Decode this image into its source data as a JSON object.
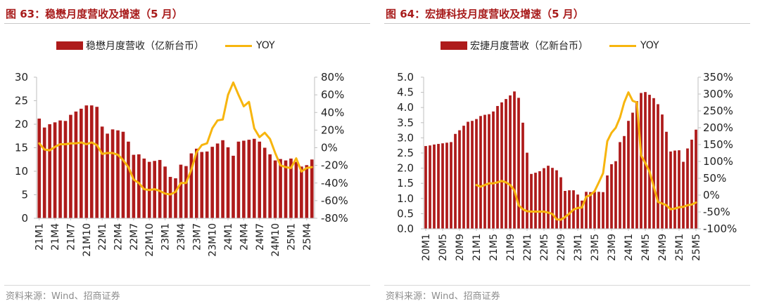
{
  "colors": {
    "bar": "#ae1b1b",
    "line": "#f7b50e",
    "title": "#a81c1c",
    "source": "#8c8c8c",
    "axis": "#bfbfbf"
  },
  "panels": [
    {
      "title": "图 63：稳懋月度营收及增速（5 月）",
      "source": "资料来源：Wind、招商证券",
      "legend": {
        "bar": "稳懋月度营收（亿新台币）",
        "line": "YOY"
      }
    },
    {
      "title": "图 64：宏捷科技月度营收及增速（5 月）",
      "source": "资料来源：Wind、招商证券",
      "legend": {
        "bar": "宏捷月度营收（亿新台币）",
        "line": "YOY"
      }
    }
  ],
  "chart_data": [
    {
      "type": "bar",
      "title": "图 63：稳懋月度营收及增速（5 月）",
      "x": [
        "21M1",
        "21M2",
        "21M3",
        "21M4",
        "21M5",
        "21M6",
        "21M7",
        "21M8",
        "21M9",
        "21M10",
        "21M11",
        "21M12",
        "22M1",
        "22M2",
        "22M3",
        "22M4",
        "22M5",
        "22M6",
        "22M7",
        "22M8",
        "22M9",
        "22M10",
        "22M11",
        "22M12",
        "23M1",
        "23M2",
        "23M3",
        "23M4",
        "23M5",
        "23M6",
        "23M7",
        "23M8",
        "23M9",
        "23M10",
        "23M11",
        "23M12",
        "24M1",
        "24M2",
        "24M3",
        "24M4",
        "24M5",
        "24M6",
        "24M7",
        "24M8",
        "24M9",
        "24M10",
        "24M11",
        "24M12",
        "25M1",
        "25M2",
        "25M3",
        "25M4",
        "25M5"
      ],
      "x_tick_labels": [
        "21M1",
        "21M4",
        "21M7",
        "21M10",
        "22M1",
        "22M4",
        "22M7",
        "22M10",
        "23M1",
        "23M4",
        "23M7",
        "23M10",
        "24M1",
        "24M4",
        "24M7",
        "24M10",
        "25M1",
        "25M4"
      ],
      "series": [
        {
          "name": "稳懋月度营收（亿新台币）",
          "type": "bar",
          "axis": "left",
          "values": [
            21.2,
            19.3,
            20.0,
            20.4,
            20.8,
            20.7,
            22.0,
            22.7,
            23.3,
            24.0,
            24.0,
            23.7,
            19.5,
            18.0,
            18.9,
            18.7,
            18.4,
            16.3,
            13.5,
            13.6,
            12.7,
            12.0,
            12.2,
            12.4,
            11.0,
            8.8,
            8.5,
            11.4,
            11.1,
            13.8,
            14.8,
            14.1,
            14.2,
            15.2,
            15.9,
            16.6,
            15.1,
            13.3,
            16.3,
            16.5,
            16.7,
            16.9,
            16.3,
            15.0,
            13.6,
            12.3,
            12.6,
            12.3,
            12.7,
            12.0,
            11.0,
            11.3,
            12.5
          ]
        },
        {
          "name": "YOY",
          "type": "line",
          "axis": "right",
          "values": [
            5,
            -2,
            -3,
            1,
            4,
            4,
            5,
            5,
            6,
            4,
            6,
            3,
            -7,
            -6,
            -6,
            -8,
            -14,
            -22,
            -36,
            -40,
            -47,
            -48,
            -47,
            -49,
            -52,
            -53,
            -50,
            -40,
            -40,
            -25,
            -5,
            3,
            5,
            22,
            31,
            32,
            60,
            74,
            60,
            47,
            52,
            22,
            12,
            17,
            10,
            -6,
            -20,
            -22,
            -23,
            -12,
            -27,
            -23,
            -22
          ]
        }
      ],
      "ylim_left": [
        0,
        30
      ],
      "yticks_left": [
        0,
        5,
        10,
        15,
        20,
        25,
        30
      ],
      "ylim_right": [
        -80,
        80
      ],
      "yticks_right": [
        "-80%",
        "-60%",
        "-40%",
        "-20%",
        "0%",
        "20%",
        "40%",
        "60%",
        "80%"
      ],
      "grid": false,
      "legend_position": "top"
    },
    {
      "type": "bar",
      "title": "图 64：宏捷科技月度营收及增速（5 月）",
      "x": [
        "20M1",
        "20M2",
        "20M3",
        "20M4",
        "20M5",
        "20M6",
        "20M7",
        "20M8",
        "20M9",
        "20M10",
        "20M11",
        "20M12",
        "21M1",
        "21M2",
        "21M3",
        "21M4",
        "21M5",
        "21M6",
        "21M7",
        "21M8",
        "21M9",
        "21M10",
        "21M11",
        "21M12",
        "22M1",
        "22M2",
        "22M3",
        "22M4",
        "22M5",
        "22M6",
        "22M7",
        "22M8",
        "22M9",
        "22M10",
        "22M11",
        "22M12",
        "23M1",
        "23M2",
        "23M3",
        "23M4",
        "23M5",
        "23M6",
        "23M7",
        "23M8",
        "23M9",
        "23M10",
        "23M11",
        "23M12",
        "24M1",
        "24M2",
        "24M3",
        "24M4",
        "24M5",
        "24M6",
        "24M7",
        "24M8",
        "24M9",
        "24M10",
        "24M11",
        "24M12",
        "25M1",
        "25M2",
        "25M3",
        "25M4",
        "25M5"
      ],
      "x_tick_labels": [
        "20M1",
        "20M5",
        "20M9",
        "21M1",
        "21M5",
        "21M9",
        "22M1",
        "22M5",
        "22M9",
        "23M1",
        "23M5",
        "23M9",
        "24M1",
        "24M5",
        "24M9",
        "25M1",
        "25M5"
      ],
      "series": [
        {
          "name": "宏捷月度营收（亿新台币）",
          "type": "bar",
          "axis": "left",
          "values": [
            2.73,
            2.75,
            2.78,
            2.8,
            2.82,
            2.84,
            2.86,
            3.13,
            3.25,
            3.4,
            3.53,
            3.56,
            3.62,
            3.72,
            3.76,
            3.78,
            3.87,
            4.05,
            4.17,
            4.28,
            4.4,
            4.53,
            4.32,
            3.5,
            2.51,
            1.81,
            1.85,
            1.9,
            2.0,
            2.08,
            2.01,
            1.93,
            1.7,
            1.25,
            1.27,
            1.27,
            1.13,
            0.93,
            1.22,
            1.21,
            1.22,
            1.22,
            1.21,
            1.76,
            2.13,
            2.23,
            2.86,
            3.06,
            3.56,
            3.83,
            4.21,
            4.48,
            4.51,
            4.42,
            4.31,
            4.11,
            3.77,
            3.2,
            2.55,
            2.58,
            2.59,
            2.21,
            2.65,
            2.94,
            3.27
          ]
        },
        {
          "name": "YOY",
          "type": "line",
          "axis": "right",
          "values": [
            null,
            null,
            null,
            null,
            null,
            null,
            null,
            null,
            null,
            null,
            null,
            null,
            30,
            25,
            30,
            35,
            35,
            38,
            42,
            38,
            30,
            14,
            -30,
            -42,
            -48,
            -49,
            -49,
            -49,
            -49,
            -52,
            -56,
            -72,
            -73,
            -65,
            -55,
            -43,
            -38,
            -37,
            -5,
            0,
            12,
            38,
            65,
            160,
            185,
            200,
            230,
            275,
            305,
            280,
            275,
            118,
            95,
            70,
            25,
            -20,
            -25,
            -30,
            -42,
            -40,
            -36,
            -35,
            -30,
            -28,
            -22
          ]
        }
      ],
      "ylim_left": [
        0,
        5
      ],
      "yticks_left": [
        "0.0",
        "0.5",
        "1.0",
        "1.5",
        "2.0",
        "2.5",
        "3.0",
        "3.5",
        "4.0",
        "4.5",
        "5.0"
      ],
      "ylim_right": [
        -100,
        350
      ],
      "yticks_right": [
        "-100%",
        "-50%",
        "0%",
        "50%",
        "100%",
        "150%",
        "200%",
        "250%",
        "300%",
        "350%"
      ],
      "grid": false,
      "legend_position": "top"
    }
  ]
}
